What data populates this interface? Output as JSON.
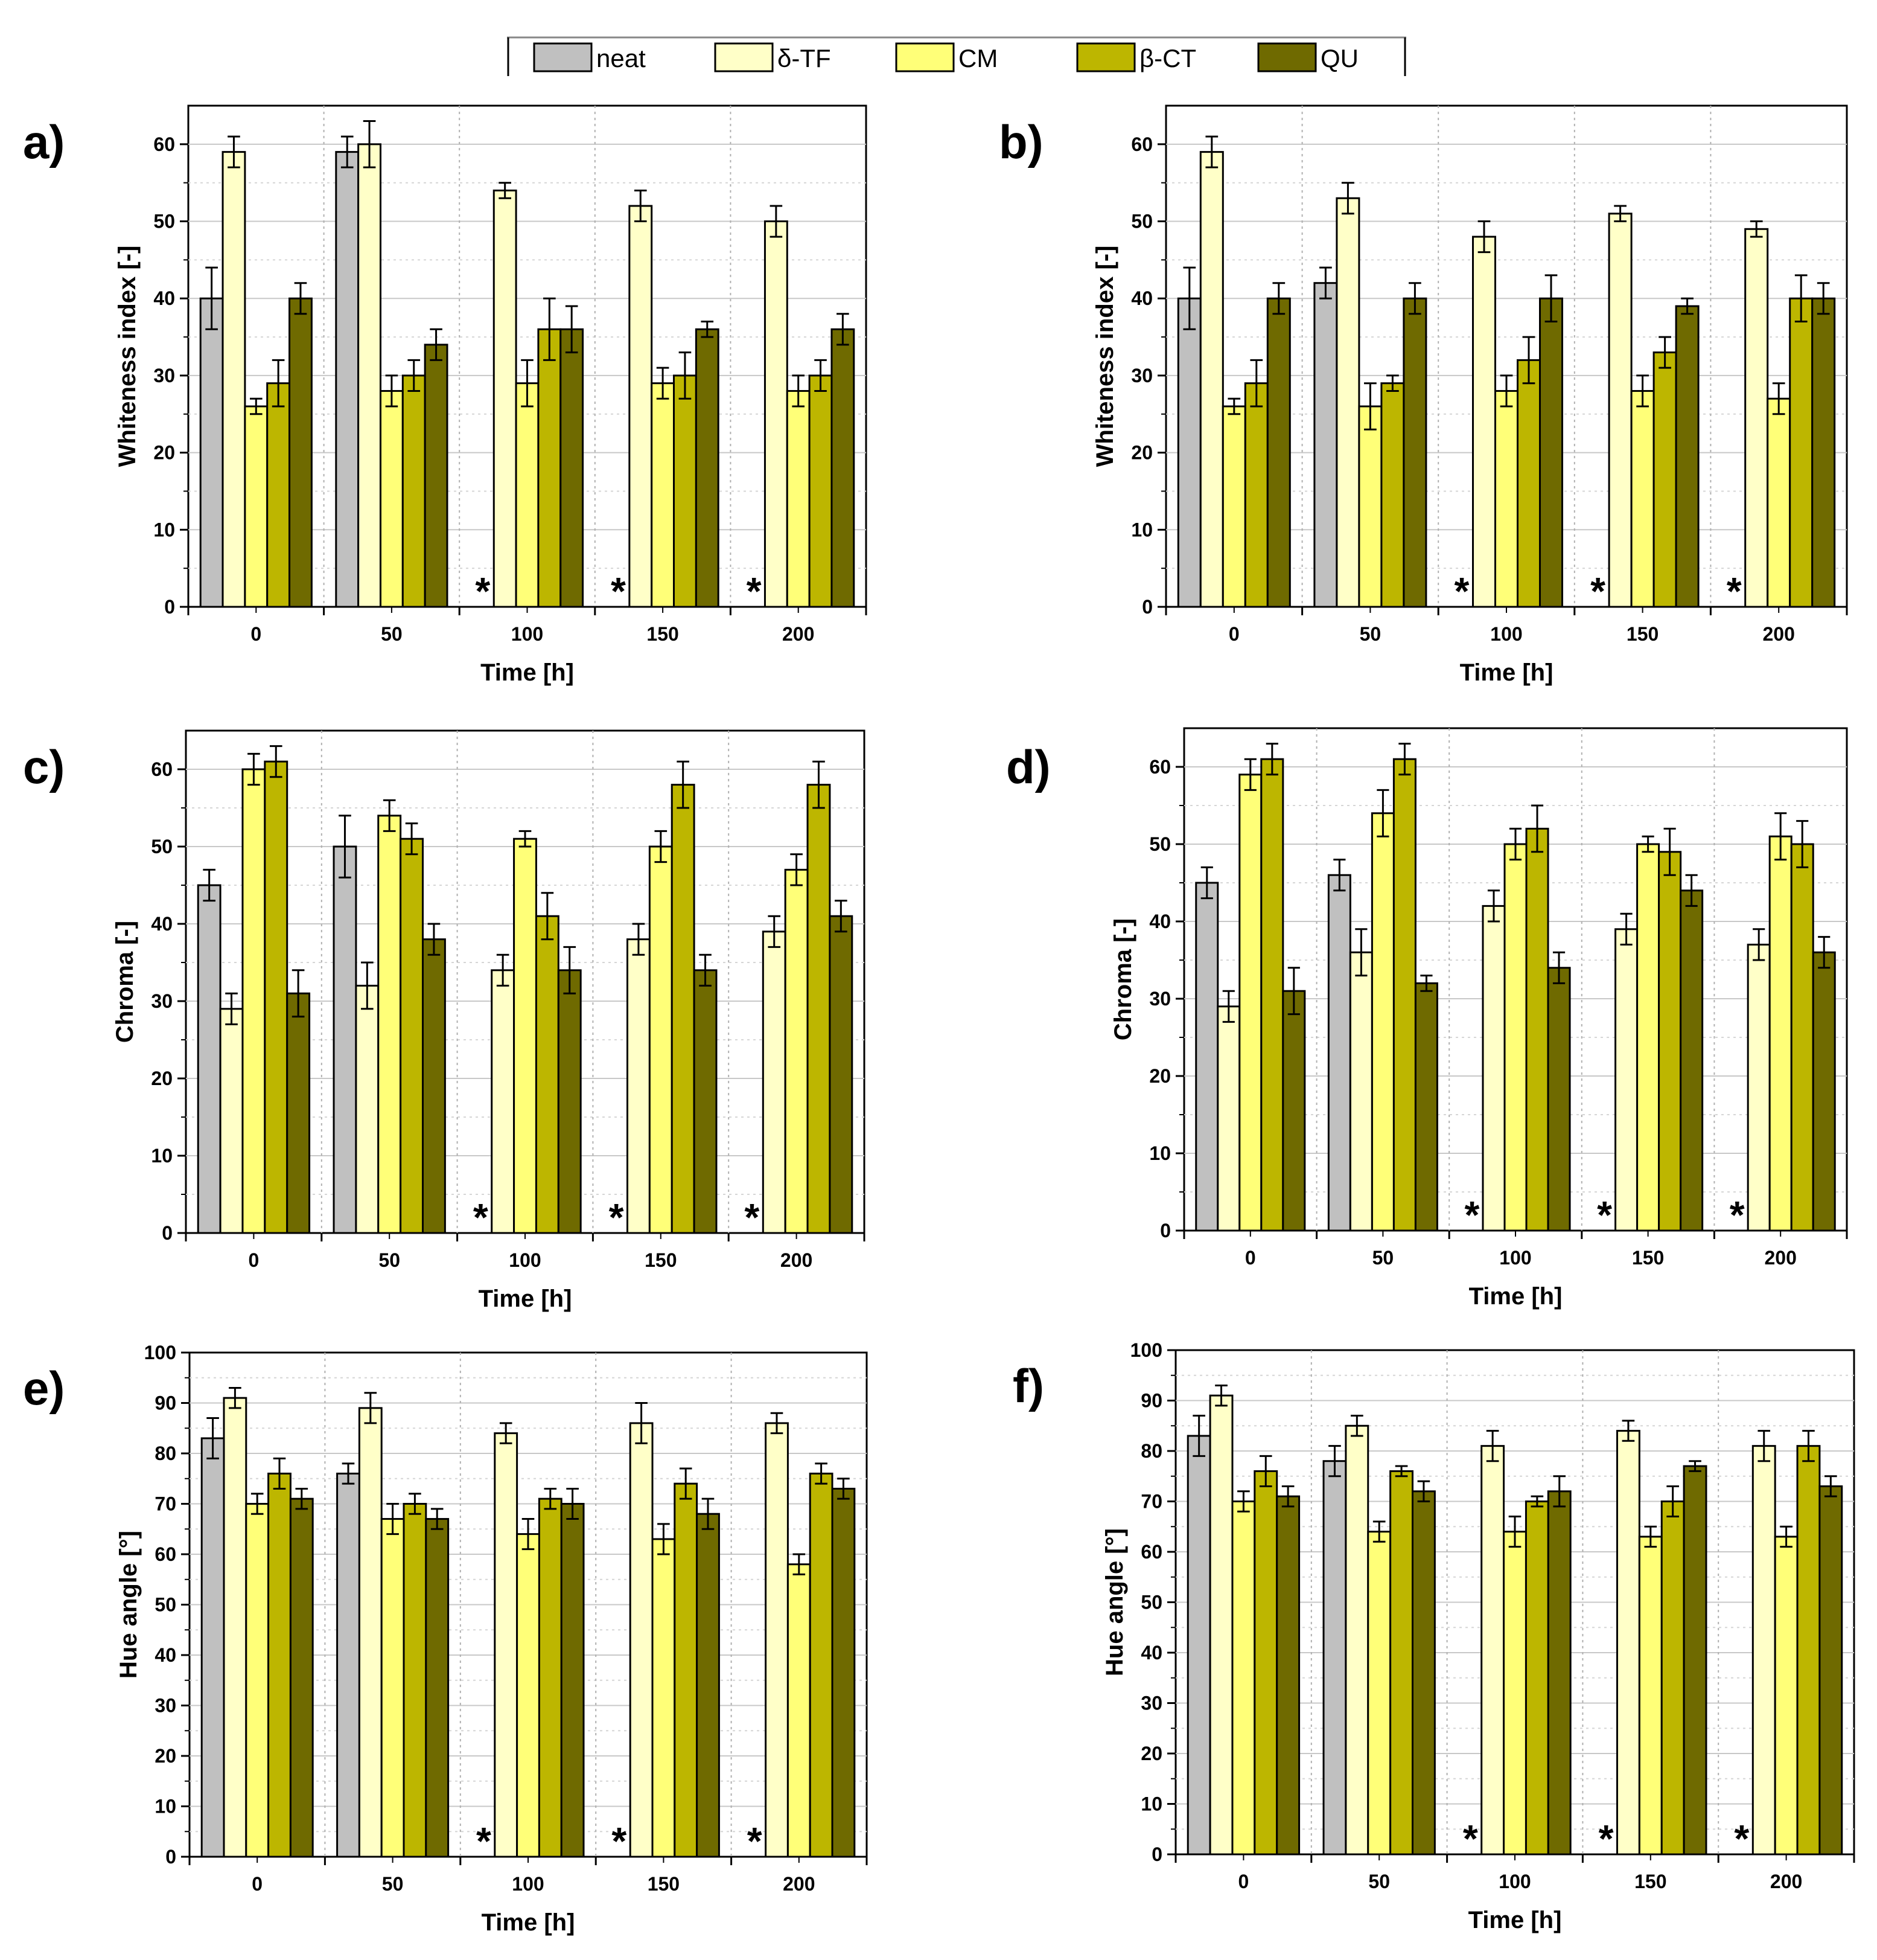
{
  "legend": {
    "entries": [
      {
        "label": "neat",
        "color": "#c0c0c0"
      },
      {
        "label": "δ-TF",
        "color": "#ffffc8"
      },
      {
        "label": "CM",
        "color": "#ffff78"
      },
      {
        "label": "β-CT",
        "color": "#bdb600"
      },
      {
        "label": "QU",
        "color": "#6f6a00"
      }
    ]
  },
  "chart_data": [
    {
      "panel": "a)",
      "type": "bar",
      "xlabel": "Time [h]",
      "ylabel": "Whiteness index [-]",
      "categories": [
        "0",
        "50",
        "100",
        "150",
        "200"
      ],
      "ylim": [
        0,
        65
      ],
      "yticks": [
        0,
        10,
        20,
        30,
        40,
        50,
        60
      ],
      "series": [
        {
          "name": "neat",
          "values": [
            40,
            59,
            null,
            null,
            null
          ],
          "errors": [
            4,
            2,
            null,
            null,
            null
          ]
        },
        {
          "name": "δ-TF",
          "values": [
            59,
            60,
            54,
            52,
            50
          ],
          "errors": [
            2,
            3,
            1,
            2,
            2
          ]
        },
        {
          "name": "CM",
          "values": [
            26,
            28,
            29,
            29,
            28
          ],
          "errors": [
            1,
            2,
            3,
            2,
            2
          ]
        },
        {
          "name": "β-CT",
          "values": [
            29,
            30,
            36,
            30,
            30
          ],
          "errors": [
            3,
            2,
            4,
            3,
            2
          ]
        },
        {
          "name": "QU",
          "values": [
            40,
            34,
            36,
            36,
            36
          ],
          "errors": [
            2,
            2,
            3,
            1,
            2
          ]
        }
      ],
      "star_marker": "*",
      "star_categories": [
        "100",
        "150",
        "200"
      ]
    },
    {
      "panel": "b)",
      "type": "bar",
      "xlabel": "Time [h]",
      "ylabel": "Whiteness index [-]",
      "categories": [
        "0",
        "50",
        "100",
        "150",
        "200"
      ],
      "ylim": [
        0,
        65
      ],
      "yticks": [
        0,
        10,
        20,
        30,
        40,
        50,
        60
      ],
      "series": [
        {
          "name": "neat",
          "values": [
            40,
            42,
            null,
            null,
            null
          ],
          "errors": [
            4,
            2,
            null,
            null,
            null
          ]
        },
        {
          "name": "δ-TF",
          "values": [
            59,
            53,
            48,
            51,
            49
          ],
          "errors": [
            2,
            2,
            2,
            1,
            1
          ]
        },
        {
          "name": "CM",
          "values": [
            26,
            26,
            28,
            28,
            27
          ],
          "errors": [
            1,
            3,
            2,
            2,
            2
          ]
        },
        {
          "name": "β-CT",
          "values": [
            29,
            29,
            32,
            33,
            40
          ],
          "errors": [
            3,
            1,
            3,
            2,
            3
          ]
        },
        {
          "name": "QU",
          "values": [
            40,
            40,
            40,
            39,
            40
          ],
          "errors": [
            2,
            2,
            3,
            1,
            2
          ]
        }
      ],
      "star_marker": "*",
      "star_categories": [
        "100",
        "150",
        "200"
      ]
    },
    {
      "panel": "c)",
      "type": "bar",
      "xlabel": "Time [h]",
      "ylabel": "Chroma [-]",
      "categories": [
        "0",
        "50",
        "100",
        "150",
        "200"
      ],
      "ylim": [
        0,
        65
      ],
      "yticks": [
        0,
        10,
        20,
        30,
        40,
        50,
        60
      ],
      "series": [
        {
          "name": "neat",
          "values": [
            45,
            50,
            null,
            null,
            null
          ],
          "errors": [
            2,
            4,
            null,
            null,
            null
          ]
        },
        {
          "name": "δ-TF",
          "values": [
            29,
            32,
            34,
            38,
            39
          ],
          "errors": [
            2,
            3,
            2,
            2,
            2
          ]
        },
        {
          "name": "CM",
          "values": [
            60,
            54,
            51,
            50,
            47
          ],
          "errors": [
            2,
            2,
            1,
            2,
            2
          ]
        },
        {
          "name": "β-CT",
          "values": [
            61,
            51,
            41,
            58,
            58
          ],
          "errors": [
            2,
            2,
            3,
            3,
            3
          ]
        },
        {
          "name": "QU",
          "values": [
            31,
            38,
            34,
            34,
            41
          ],
          "errors": [
            3,
            2,
            3,
            2,
            2
          ]
        }
      ],
      "star_marker": "*",
      "star_categories": [
        "100",
        "150",
        "200"
      ]
    },
    {
      "panel": "d)",
      "type": "bar",
      "xlabel": "Time [h]",
      "ylabel": "Chroma [-]",
      "categories": [
        "0",
        "50",
        "100",
        "150",
        "200"
      ],
      "ylim": [
        0,
        65
      ],
      "yticks": [
        0,
        10,
        20,
        30,
        40,
        50,
        60
      ],
      "series": [
        {
          "name": "neat",
          "values": [
            45,
            46,
            null,
            null,
            null
          ],
          "errors": [
            2,
            2,
            null,
            null,
            null
          ]
        },
        {
          "name": "δ-TF",
          "values": [
            29,
            36,
            42,
            39,
            37
          ],
          "errors": [
            2,
            3,
            2,
            2,
            2
          ]
        },
        {
          "name": "CM",
          "values": [
            59,
            54,
            50,
            50,
            51
          ],
          "errors": [
            2,
            3,
            2,
            1,
            3
          ]
        },
        {
          "name": "β-CT",
          "values": [
            61,
            61,
            52,
            49,
            50
          ],
          "errors": [
            2,
            2,
            3,
            3,
            3
          ]
        },
        {
          "name": "QU",
          "values": [
            31,
            32,
            34,
            44,
            36
          ],
          "errors": [
            3,
            1,
            2,
            2,
            2
          ]
        }
      ],
      "star_marker": "*",
      "star_categories": [
        "100",
        "150",
        "200"
      ]
    },
    {
      "panel": "e)",
      "type": "bar",
      "xlabel": "Time [h]",
      "ylabel": "Hue angle [°]",
      "categories": [
        "0",
        "50",
        "100",
        "150",
        "200"
      ],
      "ylim": [
        0,
        100
      ],
      "yticks": [
        0,
        10,
        20,
        30,
        40,
        50,
        60,
        70,
        80,
        90,
        100
      ],
      "series": [
        {
          "name": "neat",
          "values": [
            83,
            76,
            null,
            null,
            null
          ],
          "errors": [
            4,
            2,
            null,
            null,
            null
          ]
        },
        {
          "name": "δ-TF",
          "values": [
            91,
            89,
            84,
            86,
            86
          ],
          "errors": [
            2,
            3,
            2,
            4,
            2
          ]
        },
        {
          "name": "CM",
          "values": [
            70,
            67,
            64,
            63,
            58
          ],
          "errors": [
            2,
            3,
            3,
            3,
            2
          ]
        },
        {
          "name": "β-CT",
          "values": [
            76,
            70,
            71,
            74,
            76
          ],
          "errors": [
            3,
            2,
            2,
            3,
            2
          ]
        },
        {
          "name": "QU",
          "values": [
            71,
            67,
            70,
            68,
            73
          ],
          "errors": [
            2,
            2,
            3,
            3,
            2
          ]
        }
      ],
      "star_marker": "*",
      "star_categories": [
        "100",
        "150",
        "200"
      ]
    },
    {
      "panel": "f)",
      "type": "bar",
      "xlabel": "Time [h]",
      "ylabel": "Hue angle [°]",
      "categories": [
        "0",
        "50",
        "100",
        "150",
        "200"
      ],
      "ylim": [
        0,
        100
      ],
      "yticks": [
        0,
        10,
        20,
        30,
        40,
        50,
        60,
        70,
        80,
        90,
        100
      ],
      "series": [
        {
          "name": "neat",
          "values": [
            83,
            78,
            null,
            null,
            null
          ],
          "errors": [
            4,
            3,
            null,
            null,
            null
          ]
        },
        {
          "name": "δ-TF",
          "values": [
            91,
            85,
            81,
            84,
            81
          ],
          "errors": [
            2,
            2,
            3,
            2,
            3
          ]
        },
        {
          "name": "CM",
          "values": [
            70,
            64,
            64,
            63,
            63
          ],
          "errors": [
            2,
            2,
            3,
            2,
            2
          ]
        },
        {
          "name": "β-CT",
          "values": [
            76,
            76,
            70,
            70,
            81
          ],
          "errors": [
            3,
            1,
            1,
            3,
            3
          ]
        },
        {
          "name": "QU",
          "values": [
            71,
            72,
            72,
            77,
            73
          ],
          "errors": [
            2,
            2,
            3,
            1,
            2
          ]
        }
      ],
      "star_marker": "*",
      "star_categories": [
        "100",
        "150",
        "200"
      ]
    }
  ]
}
